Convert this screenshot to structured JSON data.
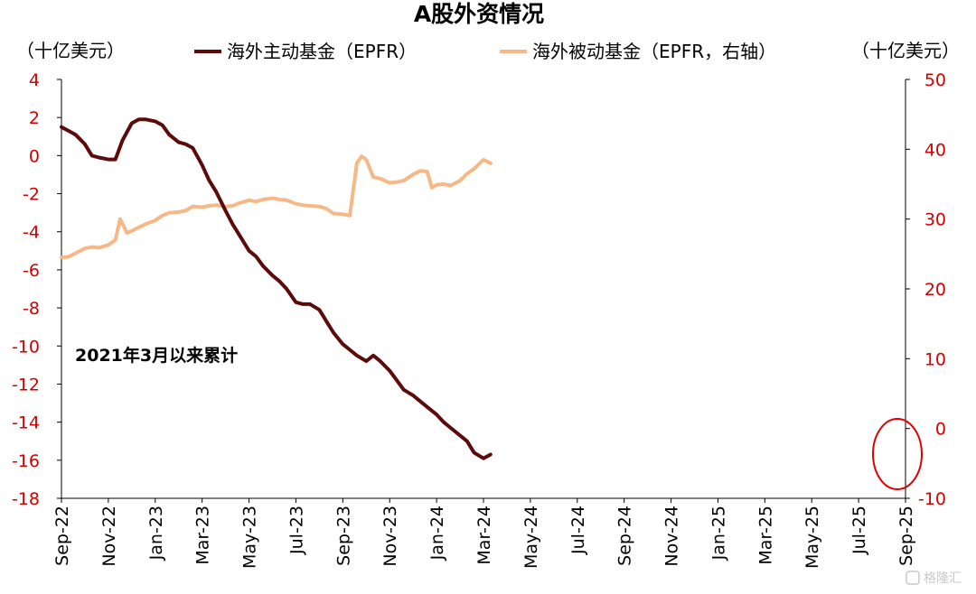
{
  "chart_data": {
    "type": "line",
    "title": "A股外资情况",
    "left_axis_unit": "（十亿美元）",
    "right_axis_unit": "（十亿美元）",
    "annotation": "2021年3月以来累计",
    "watermark": "格隆汇",
    "legend_position": "top",
    "grid": false,
    "left_ylim": [
      -18,
      4
    ],
    "left_yticks": [
      4,
      2,
      0,
      -2,
      -4,
      -6,
      -8,
      -10,
      -12,
      -14,
      -16,
      -18
    ],
    "right_ylim": [
      -10,
      50
    ],
    "right_yticks": [
      50,
      40,
      30,
      20,
      10,
      0,
      -10
    ],
    "tick_color": "#d40000",
    "x_range": [
      "2022-09",
      "2025-09"
    ],
    "x_tick_labels": [
      "Sep-22",
      "Nov-22",
      "Jan-23",
      "Mar-23",
      "May-23",
      "Jul-23",
      "Sep-23",
      "Nov-23",
      "Jan-24",
      "Mar-24",
      "May-24",
      "Jul-24",
      "Sep-24",
      "Nov-24",
      "Jan-25",
      "Mar-25",
      "May-25",
      "Jul-25",
      "Sep-25"
    ],
    "highlight_circle_at": "Sep-25",
    "series": [
      {
        "name": "海外主动基金（EPFR）",
        "axis": "left",
        "color": "#5c0a0a",
        "x": [
          0,
          0.3,
          0.6,
          1.0,
          1.3,
          1.6,
          2.0,
          2.3,
          2.6,
          3.0,
          3.3,
          3.6,
          4.0,
          4.3,
          4.6,
          5.0,
          5.3,
          5.6,
          6.0,
          6.3,
          6.6,
          7.0,
          7.3,
          7.6,
          8.0,
          8.3,
          8.6,
          9.0,
          9.3,
          9.6,
          10.0,
          10.3,
          10.6,
          11.0,
          11.3,
          11.6,
          12.0,
          12.3,
          12.6,
          13.0,
          13.3,
          13.6,
          14.0,
          14.3,
          14.6,
          15.0,
          15.3,
          15.6,
          16.0,
          16.3,
          16.6,
          17.0,
          17.3,
          17.6,
          18.0,
          18.3
        ],
        "y": [
          1.5,
          1.3,
          1.1,
          0.6,
          0.0,
          -0.1,
          -0.2,
          -0.2,
          0.8,
          1.7,
          1.9,
          1.9,
          1.8,
          1.6,
          1.1,
          0.7,
          0.6,
          0.4,
          -0.5,
          -1.3,
          -1.9,
          -2.9,
          -3.6,
          -4.2,
          -5.0,
          -5.3,
          -5.8,
          -6.3,
          -6.6,
          -7.0,
          -7.7,
          -7.8,
          -7.8,
          -8.1,
          -8.7,
          -9.3,
          -9.9,
          -10.2,
          -10.5,
          -10.8,
          -10.5,
          -10.8,
          -11.3,
          -11.8,
          -12.3,
          -12.6,
          -12.9,
          -13.2,
          -13.6,
          -14.0,
          -14.3,
          -14.7,
          -15.0,
          -15.6,
          -15.9,
          -15.7
        ]
      },
      {
        "name": "海外被动基金（EPFR，右轴）",
        "axis": "right",
        "color": "#f5b886",
        "x": [
          0,
          0.3,
          0.6,
          1.0,
          1.3,
          1.6,
          2.0,
          2.3,
          2.5,
          2.8,
          3.0,
          3.3,
          3.6,
          4.0,
          4.3,
          4.6,
          5.0,
          5.3,
          5.6,
          6.0,
          6.3,
          6.6,
          7.0,
          7.3,
          7.6,
          8.0,
          8.3,
          8.6,
          9.0,
          9.3,
          9.6,
          10.0,
          10.3,
          10.6,
          11.0,
          11.3,
          11.6,
          12.0,
          12.3,
          12.6,
          12.8,
          13.0,
          13.3,
          13.6,
          14.0,
          14.3,
          14.6,
          15.0,
          15.3,
          15.6,
          15.8,
          16.0,
          16.3,
          16.6,
          17.0,
          17.3,
          17.6,
          18.0,
          18.3
        ],
        "y": [
          24.5,
          24.6,
          25.1,
          25.8,
          26.0,
          25.9,
          26.3,
          27.0,
          30.0,
          28.0,
          28.3,
          28.8,
          29.3,
          29.8,
          30.5,
          30.9,
          31.0,
          31.2,
          31.8,
          31.7,
          31.9,
          32.0,
          31.8,
          31.9,
          32.3,
          32.7,
          32.5,
          32.8,
          33.0,
          32.8,
          32.7,
          32.2,
          32.0,
          31.9,
          31.8,
          31.5,
          30.8,
          30.7,
          30.5,
          38.0,
          39.0,
          38.5,
          36.0,
          35.8,
          35.2,
          35.3,
          35.5,
          36.4,
          36.9,
          36.8,
          34.5,
          34.9,
          35.0,
          34.8,
          35.5,
          36.5,
          37.2,
          38.5,
          38.0
        ]
      }
    ]
  }
}
